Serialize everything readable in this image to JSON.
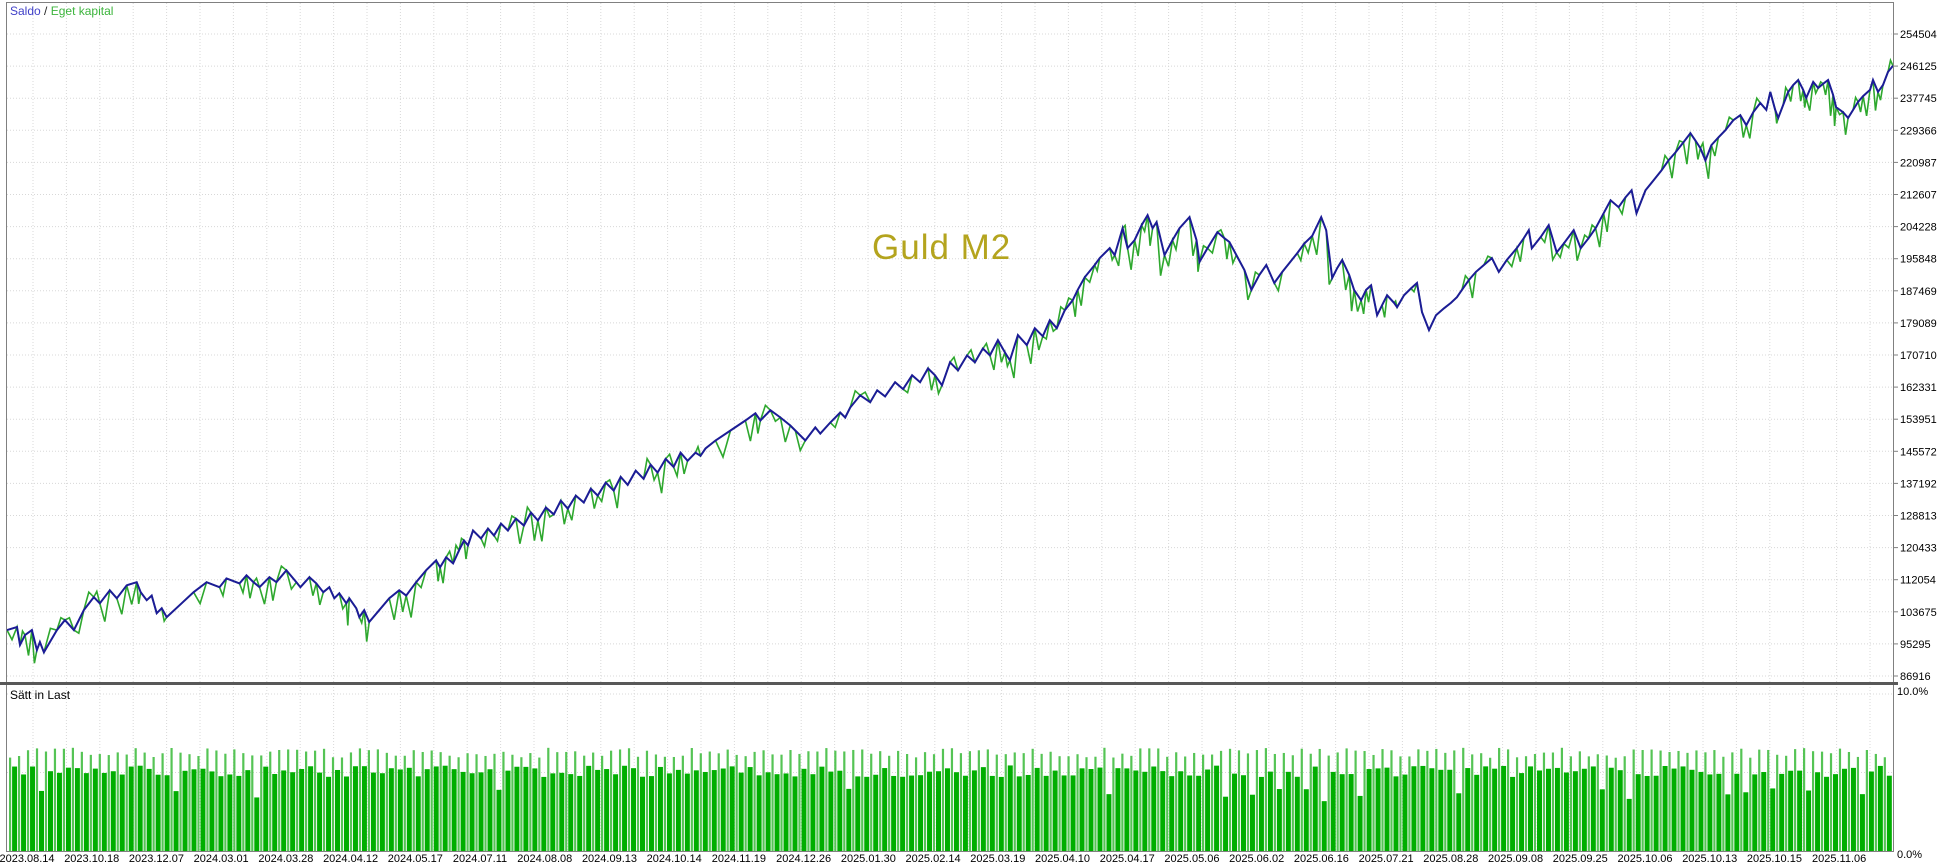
{
  "legend": {
    "balance": "Saldo",
    "separator": " / ",
    "equity": "Eget kapital"
  },
  "watermark": "Guld M2",
  "lower_panel": {
    "label": "Sätt in Last",
    "y_max_label": "10.0%",
    "y_min_label": "0.0%"
  },
  "colors": {
    "balance_line": "#1c1c96",
    "equity_line": "#2ea82e",
    "legend_balance": "#4040c8",
    "legend_equity": "#3cb43c",
    "grid": "#d8d8d8",
    "frame": "#808080",
    "divider": "#585858",
    "bar_thin": "#55c455",
    "bar_thick": "#00ae00",
    "axis_text": "#000000",
    "watermark": "#b4a41e"
  },
  "chart_data": {
    "type": "line",
    "title": "Guld M2",
    "legend_position": "top-left",
    "grid": "dotted",
    "y_axis_side": "right",
    "y_tick_labels": [
      "254504",
      "246125",
      "237745",
      "229366",
      "220987",
      "212607",
      "204228",
      "195848",
      "187469",
      "179089",
      "170710",
      "162331",
      "153951",
      "145572",
      "137192",
      "128813",
      "120433",
      "112054",
      "103675",
      "95295",
      "86916"
    ],
    "y_ticks_values": [
      254504,
      246125,
      237745,
      229366,
      220987,
      212607,
      204228,
      195848,
      187469,
      179089,
      170710,
      162331,
      153951,
      145572,
      137192,
      128813,
      120433,
      112054,
      103675,
      95295,
      86916
    ],
    "ylim": [
      85000,
      262500
    ],
    "x_tick_labels": [
      "2023.08.14",
      "2023.10.18",
      "2023.12.07",
      "2024.03.01",
      "2024.03.28",
      "2024.04.12",
      "2024.05.17",
      "2024.07.11",
      "2024.08.08",
      "2024.09.13",
      "2024.10.14",
      "2024.11.19",
      "2024.12.26",
      "2025.01.30",
      "2025.02.14",
      "2025.03.19",
      "2025.04.10",
      "2025.04.17",
      "2025.05.06",
      "2025.06.02",
      "2025.06.16",
      "2025.07.21",
      "2025.08.28",
      "2025.09.08",
      "2025.09.25",
      "2025.10.06",
      "2025.10.13",
      "2025.10.15",
      "2025.11.06"
    ],
    "series": [
      {
        "name": "Saldo",
        "role": "balance",
        "points": [
          [
            0,
            98900
          ],
          [
            10,
            99700
          ],
          [
            13,
            95000
          ],
          [
            18,
            97600
          ],
          [
            25,
            98900
          ],
          [
            30,
            93700
          ],
          [
            33,
            95800
          ],
          [
            37,
            93100
          ],
          [
            50,
            98900
          ],
          [
            58,
            101500
          ],
          [
            67,
            98900
          ],
          [
            77,
            104100
          ],
          [
            87,
            107500
          ],
          [
            93,
            105900
          ],
          [
            103,
            109300
          ],
          [
            110,
            107200
          ],
          [
            120,
            110600
          ],
          [
            130,
            111400
          ],
          [
            134,
            108800
          ],
          [
            140,
            106700
          ],
          [
            145,
            107900
          ],
          [
            150,
            103300
          ],
          [
            155,
            104600
          ],
          [
            160,
            102300
          ],
          [
            173,
            105400
          ],
          [
            187,
            108800
          ],
          [
            200,
            111400
          ],
          [
            213,
            110100
          ],
          [
            220,
            112400
          ],
          [
            233,
            111100
          ],
          [
            240,
            113200
          ],
          [
            247,
            111400
          ],
          [
            253,
            110100
          ],
          [
            263,
            112700
          ],
          [
            270,
            111400
          ],
          [
            280,
            114500
          ],
          [
            290,
            111400
          ],
          [
            294,
            110100
          ],
          [
            303,
            112700
          ],
          [
            310,
            111100
          ],
          [
            317,
            108800
          ],
          [
            323,
            110100
          ],
          [
            328,
            107200
          ],
          [
            333,
            108500
          ],
          [
            340,
            105900
          ],
          [
            343,
            107200
          ],
          [
            350,
            104600
          ],
          [
            353,
            102300
          ],
          [
            358,
            104100
          ],
          [
            363,
            101000
          ],
          [
            373,
            104100
          ],
          [
            383,
            107200
          ],
          [
            393,
            109300
          ],
          [
            400,
            107900
          ],
          [
            410,
            111400
          ],
          [
            420,
            114500
          ],
          [
            430,
            117100
          ],
          [
            434,
            115300
          ],
          [
            440,
            117900
          ],
          [
            447,
            116300
          ],
          [
            453,
            119700
          ],
          [
            458,
            122300
          ],
          [
            462,
            121000
          ],
          [
            467,
            124900
          ],
          [
            475,
            122800
          ],
          [
            482,
            125400
          ],
          [
            488,
            123600
          ],
          [
            495,
            126700
          ],
          [
            502,
            124900
          ],
          [
            510,
            128000
          ],
          [
            518,
            126200
          ],
          [
            525,
            129600
          ],
          [
            532,
            127500
          ],
          [
            540,
            130900
          ],
          [
            548,
            129100
          ],
          [
            555,
            132700
          ],
          [
            562,
            130600
          ],
          [
            570,
            134000
          ],
          [
            578,
            132200
          ],
          [
            585,
            135800
          ],
          [
            592,
            134000
          ],
          [
            600,
            137400
          ],
          [
            608,
            135300
          ],
          [
            615,
            138900
          ],
          [
            622,
            136800
          ],
          [
            630,
            140500
          ],
          [
            638,
            138400
          ],
          [
            645,
            142100
          ],
          [
            652,
            140000
          ],
          [
            660,
            143600
          ],
          [
            668,
            141500
          ],
          [
            675,
            145200
          ],
          [
            682,
            143100
          ],
          [
            690,
            145200
          ],
          [
            695,
            144400
          ],
          [
            700,
            146300
          ],
          [
            710,
            148400
          ],
          [
            725,
            151000
          ],
          [
            740,
            153600
          ],
          [
            750,
            155500
          ],
          [
            755,
            153600
          ],
          [
            765,
            156300
          ],
          [
            775,
            154400
          ],
          [
            785,
            152300
          ],
          [
            790,
            151000
          ],
          [
            800,
            148400
          ],
          [
            810,
            151800
          ],
          [
            815,
            150200
          ],
          [
            825,
            153100
          ],
          [
            835,
            155700
          ],
          [
            840,
            154400
          ],
          [
            845,
            157000
          ],
          [
            855,
            160200
          ],
          [
            865,
            158400
          ],
          [
            872,
            161500
          ],
          [
            880,
            159900
          ],
          [
            890,
            163600
          ],
          [
            898,
            161800
          ],
          [
            907,
            165400
          ],
          [
            915,
            163600
          ],
          [
            923,
            167200
          ],
          [
            930,
            165400
          ],
          [
            937,
            162800
          ],
          [
            945,
            168800
          ],
          [
            953,
            166700
          ],
          [
            962,
            170600
          ],
          [
            970,
            168800
          ],
          [
            978,
            172400
          ],
          [
            985,
            170600
          ],
          [
            993,
            174600
          ],
          [
            1000,
            171400
          ],
          [
            1005,
            169300
          ],
          [
            1013,
            175900
          ],
          [
            1022,
            173300
          ],
          [
            1030,
            177700
          ],
          [
            1038,
            175600
          ],
          [
            1045,
            179800
          ],
          [
            1052,
            177700
          ],
          [
            1060,
            182400
          ],
          [
            1068,
            185000
          ],
          [
            1073,
            187700
          ],
          [
            1080,
            191000
          ],
          [
            1090,
            194200
          ],
          [
            1095,
            196000
          ],
          [
            1105,
            198600
          ],
          [
            1110,
            196800
          ],
          [
            1118,
            203800
          ],
          [
            1123,
            198600
          ],
          [
            1130,
            200700
          ],
          [
            1137,
            204600
          ],
          [
            1143,
            207200
          ],
          [
            1148,
            203800
          ],
          [
            1152,
            205400
          ],
          [
            1160,
            196800
          ],
          [
            1168,
            200700
          ],
          [
            1175,
            203800
          ],
          [
            1185,
            206700
          ],
          [
            1192,
            200700
          ],
          [
            1195,
            195000
          ],
          [
            1203,
            198600
          ],
          [
            1213,
            202800
          ],
          [
            1220,
            201200
          ],
          [
            1225,
            200200
          ],
          [
            1232,
            196800
          ],
          [
            1240,
            192900
          ],
          [
            1247,
            187700
          ],
          [
            1255,
            191600
          ],
          [
            1262,
            194200
          ],
          [
            1270,
            189500
          ],
          [
            1278,
            192400
          ],
          [
            1285,
            194700
          ],
          [
            1293,
            197300
          ],
          [
            1300,
            199800
          ],
          [
            1308,
            201800
          ],
          [
            1317,
            206700
          ],
          [
            1322,
            203300
          ],
          [
            1328,
            190800
          ],
          [
            1333,
            193400
          ],
          [
            1338,
            195500
          ],
          [
            1345,
            191600
          ],
          [
            1350,
            187700
          ],
          [
            1357,
            185000
          ],
          [
            1362,
            187700
          ],
          [
            1367,
            188900
          ],
          [
            1373,
            181100
          ],
          [
            1378,
            183700
          ],
          [
            1383,
            186300
          ],
          [
            1390,
            184300
          ],
          [
            1393,
            183200
          ],
          [
            1400,
            186300
          ],
          [
            1407,
            188100
          ],
          [
            1413,
            189500
          ],
          [
            1418,
            181900
          ],
          [
            1425,
            177200
          ],
          [
            1432,
            181100
          ],
          [
            1440,
            182900
          ],
          [
            1447,
            184300
          ],
          [
            1453,
            185800
          ],
          [
            1458,
            187700
          ],
          [
            1465,
            190300
          ],
          [
            1472,
            192400
          ],
          [
            1480,
            194200
          ],
          [
            1488,
            196000
          ],
          [
            1495,
            192400
          ],
          [
            1503,
            195500
          ],
          [
            1513,
            198600
          ],
          [
            1520,
            201200
          ],
          [
            1525,
            203300
          ],
          [
            1528,
            198600
          ],
          [
            1537,
            201500
          ],
          [
            1545,
            204600
          ],
          [
            1553,
            197500
          ],
          [
            1560,
            199800
          ],
          [
            1570,
            203300
          ],
          [
            1577,
            198600
          ],
          [
            1585,
            201200
          ],
          [
            1592,
            203800
          ],
          [
            1600,
            207700
          ],
          [
            1607,
            211100
          ],
          [
            1615,
            209300
          ],
          [
            1622,
            211900
          ],
          [
            1628,
            213700
          ],
          [
            1633,
            207700
          ],
          [
            1642,
            213700
          ],
          [
            1650,
            216300
          ],
          [
            1658,
            218900
          ],
          [
            1665,
            221500
          ],
          [
            1672,
            223600
          ],
          [
            1680,
            226200
          ],
          [
            1687,
            228600
          ],
          [
            1692,
            226700
          ],
          [
            1697,
            224700
          ],
          [
            1702,
            221500
          ],
          [
            1708,
            225500
          ],
          [
            1715,
            227500
          ],
          [
            1722,
            229400
          ],
          [
            1730,
            232000
          ],
          [
            1737,
            233300
          ],
          [
            1743,
            230700
          ],
          [
            1750,
            234100
          ],
          [
            1757,
            236500
          ],
          [
            1763,
            234700
          ],
          [
            1767,
            239400
          ],
          [
            1772,
            234700
          ],
          [
            1775,
            232600
          ],
          [
            1780,
            236000
          ],
          [
            1785,
            239400
          ],
          [
            1790,
            241200
          ],
          [
            1795,
            242500
          ],
          [
            1800,
            239900
          ],
          [
            1803,
            237800
          ],
          [
            1810,
            242000
          ],
          [
            1815,
            240400
          ],
          [
            1820,
            241500
          ],
          [
            1825,
            242500
          ],
          [
            1830,
            238600
          ],
          [
            1833,
            235400
          ],
          [
            1840,
            234100
          ],
          [
            1845,
            232600
          ],
          [
            1850,
            234700
          ],
          [
            1855,
            236800
          ],
          [
            1860,
            238300
          ],
          [
            1867,
            239900
          ],
          [
            1870,
            242500
          ],
          [
            1875,
            239400
          ],
          [
            1880,
            241200
          ],
          [
            1885,
            244600
          ],
          [
            1890,
            246200
          ]
        ]
      },
      {
        "name": "Eget kapital",
        "role": "equity",
        "derived_from": "balance",
        "spike_chance": 0.5,
        "spike_depth_value": [
          600,
          5800
        ],
        "overshoot_chance": 0.12,
        "overshoot_value": [
          400,
          2900
        ]
      }
    ],
    "load_bars": {
      "type": "bar",
      "unit": "percent",
      "axis_max": 10.0,
      "axis_min": 0.0,
      "pair_count": 210,
      "thin": {
        "base_pct": 6.25,
        "variation_pct": 0.65
      },
      "thick": {
        "base_pct": 5.05,
        "variation_pct": 0.8,
        "drop_chance": 0.085,
        "drop_base_pct": 4.0
      }
    }
  }
}
